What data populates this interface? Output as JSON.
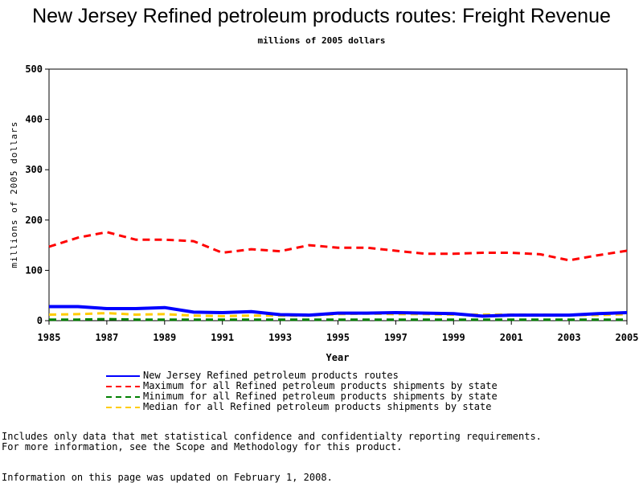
{
  "chart_data": {
    "type": "line",
    "title": "New Jersey Refined petroleum products routes: Freight Revenue",
    "subtitle": "millions of 2005 dollars",
    "xlabel": "Year",
    "ylabel": "millions of 2005 dollars",
    "xlim": [
      1985,
      2005
    ],
    "ylim": [
      0,
      500
    ],
    "x_ticks": [
      1985,
      1987,
      1989,
      1991,
      1993,
      1995,
      1997,
      1999,
      2001,
      2003,
      2005
    ],
    "y_ticks": [
      0,
      100,
      200,
      300,
      400,
      500
    ],
    "x": [
      1985,
      1986,
      1987,
      1988,
      1989,
      1990,
      1991,
      1992,
      1993,
      1994,
      1995,
      1996,
      1997,
      1998,
      1999,
      2000,
      2001,
      2002,
      2003,
      2004,
      2005
    ],
    "grid": false,
    "legend_position": "bottom",
    "series": [
      {
        "name": "New Jersey Refined petroleum products routes",
        "color": "#0000ff",
        "style": "solid",
        "values": [
          28,
          28,
          24,
          24,
          26,
          17,
          16,
          18,
          12,
          11,
          15,
          15,
          16,
          15,
          14,
          9,
          11,
          11,
          11,
          14,
          16
        ]
      },
      {
        "name": "Maximum for all Refined petroleum products shipments by state",
        "color": "#ff0000",
        "style": "dashed",
        "values": [
          147,
          165,
          176,
          161,
          161,
          158,
          135,
          142,
          138,
          150,
          145,
          145,
          139,
          133,
          133,
          135,
          135,
          132,
          120,
          130,
          139
        ]
      },
      {
        "name": "Minimum for all Refined petroleum products shipments by state",
        "color": "#008000",
        "style": "dashed",
        "values": [
          2,
          2,
          3,
          2,
          2,
          2,
          2,
          2,
          2,
          2,
          2,
          2,
          2,
          2,
          2,
          2,
          2,
          2,
          2,
          2,
          2
        ]
      },
      {
        "name": "Median for all Refined petroleum products shipments by state",
        "color": "#ffcc00",
        "style": "dashed",
        "values": [
          12,
          13,
          15,
          12,
          13,
          10,
          9,
          10,
          10,
          10,
          13,
          14,
          13,
          13,
          12,
          12,
          12,
          12,
          11,
          11,
          13
        ]
      }
    ]
  },
  "notes": {
    "line1": "Includes only data that met statistical confidence and confidentialty reporting requirements.",
    "line2": "For more information, see the Scope and Methodology for this product.",
    "updated": "Information on this page was updated on February 1, 2008."
  }
}
